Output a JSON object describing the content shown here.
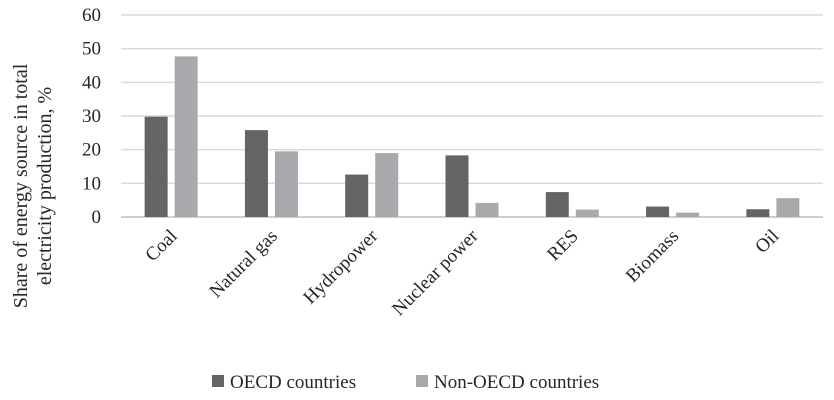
{
  "chart_data": {
    "type": "bar",
    "title": "",
    "xlabel": "",
    "ylabel": "Share of energy source in total electricity production, %",
    "ylabel_lines": [
      "Share of energy source in total",
      "electricity production, %"
    ],
    "ylim": [
      0,
      60
    ],
    "yticks": [
      0,
      10,
      20,
      30,
      40,
      50,
      60
    ],
    "grid": true,
    "legend_position": "bottom",
    "categories": [
      "Coal",
      "Natural gas",
      "Hydropower",
      "Nuclear power",
      "RES",
      "Biomass",
      "Oil"
    ],
    "series": [
      {
        "name": "OECD countries",
        "color": "#636466",
        "values": [
          29.8,
          25.8,
          12.6,
          18.3,
          7.4,
          3.1,
          2.3
        ]
      },
      {
        "name": "Non-OECD countries",
        "color": "#a7a9ac",
        "values": [
          47.7,
          19.5,
          19.0,
          4.2,
          2.2,
          1.3,
          5.6
        ]
      }
    ]
  }
}
